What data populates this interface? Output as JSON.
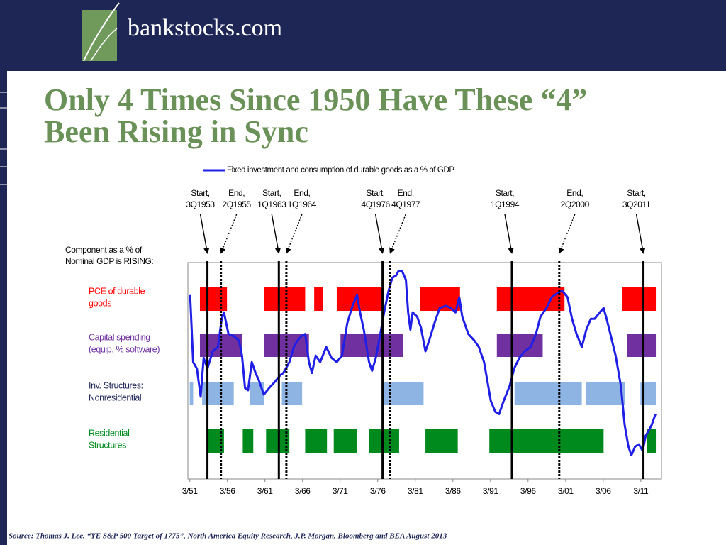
{
  "header": {
    "brand": "bankstocks.com"
  },
  "slide": {
    "title": [
      "Only 4 Times Since 1950 Have These “4”",
      "Been Rising in Sync"
    ],
    "source": "Source: Thomas J. Lee, “YE S&P 500 Target of 1775”, North America Equity Research, J.P. Morgan, Bloomberg and BEA August 2013"
  },
  "chart_data": {
    "type": "line",
    "annotation": [
      "Component as a % of",
      "Nominal GDP is RISING:"
    ],
    "xlim": [
      1951,
      2014
    ],
    "ylim": [
      0,
      100
    ],
    "xticks": [
      {
        "value": 1951.25,
        "label": "3/51"
      },
      {
        "value": 1956.25,
        "label": "3/56"
      },
      {
        "value": 1961.25,
        "label": "3/61"
      },
      {
        "value": 1966.25,
        "label": "3/66"
      },
      {
        "value": 1971.25,
        "label": "3/71"
      },
      {
        "value": 1976.25,
        "label": "3/76"
      },
      {
        "value": 1981.25,
        "label": "3/81"
      },
      {
        "value": 1986.25,
        "label": "3/86"
      },
      {
        "value": 1991.25,
        "label": "3/91"
      },
      {
        "value": 1996.25,
        "label": "3/96"
      },
      {
        "value": 2001.25,
        "label": "3/01"
      },
      {
        "value": 2006.25,
        "label": "3/06"
      },
      {
        "value": 2011.25,
        "label": "3/11"
      }
    ],
    "rows": [
      {
        "label": [
          "PCE of durable",
          "goods"
        ],
        "color": "#ff0000",
        "periods": [
          [
            1952.6,
            1956.2
          ],
          [
            1961.1,
            1966.6
          ],
          [
            1967.8,
            1969.0
          ],
          [
            1970.8,
            1977.0
          ],
          [
            1981.9,
            1987.2
          ],
          [
            1992.1,
            2001.1
          ],
          [
            2008.8,
            2013.25
          ]
        ]
      },
      {
        "label": [
          "Capital spending",
          "(equip. % software)"
        ],
        "color": "#7030a0",
        "periods": [
          [
            1952.6,
            1958.2
          ],
          [
            1961.1,
            1967.1
          ],
          [
            1971.3,
            1979.6
          ],
          [
            1992.1,
            1998.2
          ],
          [
            2009.4,
            2013.25
          ]
        ]
      },
      {
        "label": [
          "Inv. Structures:",
          "Nonresidential"
        ],
        "color": "#8db4e2",
        "periods": [
          [
            1951.25,
            1951.7
          ],
          [
            1952.9,
            1957.1
          ],
          [
            1959.2,
            1961.1
          ],
          [
            1963.5,
            1966.2
          ],
          [
            1977.0,
            1982.35
          ],
          [
            1994.45,
            2003.4
          ],
          [
            2004.0,
            2009.1
          ],
          [
            2011.2,
            2013.25
          ]
        ]
      },
      {
        "label": [
          "Residential",
          "Structures"
        ],
        "color": "#008a1e",
        "periods": [
          [
            1953.6,
            1955.8
          ],
          [
            1958.3,
            1959.7
          ],
          [
            1961.4,
            1964.5
          ],
          [
            1966.6,
            1969.5
          ],
          [
            1970.4,
            1973.5
          ],
          [
            1975.1,
            1979.1
          ],
          [
            1982.6,
            1986.9
          ],
          [
            1991.1,
            2006.3
          ],
          [
            2012.1,
            2013.25
          ]
        ]
      }
    ],
    "events": [
      {
        "label": "Start,",
        "date": "3Q1953",
        "x": 1953.6,
        "style": "solid"
      },
      {
        "label": "End,",
        "date": "2Q1955",
        "x": 1955.4,
        "style": "dotted"
      },
      {
        "label": "Start,",
        "date": "1Q1963",
        "x": 1963.1,
        "style": "solid"
      },
      {
        "label": "End,",
        "date": "1Q1964",
        "x": 1964.1,
        "style": "dotted"
      },
      {
        "label": "Start,",
        "date": "4Q1976",
        "x": 1976.9,
        "style": "solid"
      },
      {
        "label": "End,",
        "date": "4Q1977",
        "x": 1977.9,
        "style": "dotted"
      },
      {
        "label": "Start,",
        "date": "1Q1994",
        "x": 1994.1,
        "style": "solid"
      },
      {
        "label": "End,",
        "date": "2Q2000",
        "x": 2000.4,
        "style": "dotted"
      },
      {
        "label": "Start,",
        "date": "3Q2011",
        "x": 2011.6,
        "style": "solid"
      }
    ],
    "series": [
      {
        "name": "Fixed investment and consumption of durable goods as a % of GDP",
        "color": "#1f1fe6",
        "x": [
          1951.3,
          1951.7,
          1952.2,
          1952.7,
          1953.1,
          1953.6,
          1954.3,
          1955.0,
          1955.5,
          1955.8,
          1956.4,
          1957.1,
          1957.8,
          1958.2,
          1958.6,
          1959.0,
          1959.5,
          1960.0,
          1960.4,
          1961.1,
          1961.8,
          1962.6,
          1963.3,
          1963.7,
          1964.5,
          1965.1,
          1965.6,
          1966.1,
          1966.6,
          1967.1,
          1967.5,
          1968.0,
          1968.6,
          1969.4,
          1970.1,
          1970.8,
          1971.5,
          1972.2,
          1972.9,
          1973.5,
          1973.9,
          1974.4,
          1975.1,
          1975.5,
          1976.0,
          1976.6,
          1977.1,
          1977.7,
          1978.2,
          1978.7,
          1979.0,
          1979.5,
          1980.0,
          1980.3,
          1980.6,
          1980.9,
          1981.5,
          1982.0,
          1982.6,
          1983.1,
          1983.8,
          1984.5,
          1985.3,
          1986.0,
          1986.6,
          1987.1,
          1987.5,
          1988.3,
          1989.1,
          1989.7,
          1990.4,
          1990.9,
          1991.3,
          1991.9,
          1992.4,
          1993.0,
          1993.8,
          1994.4,
          1995.1,
          1995.8,
          1996.6,
          1997.3,
          1997.9,
          1998.7,
          1999.4,
          2000.2,
          2000.8,
          2001.5,
          2002.1,
          2002.7,
          2003.4,
          2004.0,
          2004.6,
          2005.1,
          2005.8,
          2006.3,
          2006.7,
          2007.2,
          2007.9,
          2008.6,
          2009.1,
          2009.6,
          2010.0,
          2010.5,
          2011.0,
          2011.5,
          2011.9,
          2012.4,
          2012.7,
          2013.2
        ],
        "values": [
          85,
          54,
          51,
          38,
          56,
          51,
          59,
          61,
          74,
          77,
          67,
          66,
          64,
          57,
          42,
          41,
          54,
          49,
          46,
          39,
          42,
          45,
          48,
          49,
          54,
          61,
          64,
          66,
          67,
          54,
          49,
          57,
          54,
          61,
          56,
          54,
          57,
          72,
          80,
          85,
          77,
          69,
          54,
          50,
          56,
          67,
          77,
          87,
          93,
          94,
          96,
          96,
          92,
          77,
          69,
          77,
          75,
          70,
          59,
          64,
          72,
          79,
          80,
          79,
          77,
          84,
          75,
          67,
          64,
          61,
          54,
          44,
          36,
          31,
          30,
          36,
          43,
          51,
          56,
          59,
          61,
          67,
          75,
          79,
          84,
          86,
          87,
          84,
          74,
          67,
          61,
          69,
          74,
          74,
          77,
          79,
          74,
          67,
          57,
          43,
          25,
          15,
          11,
          15,
          16,
          13,
          20,
          23,
          25,
          30
        ]
      }
    ]
  }
}
